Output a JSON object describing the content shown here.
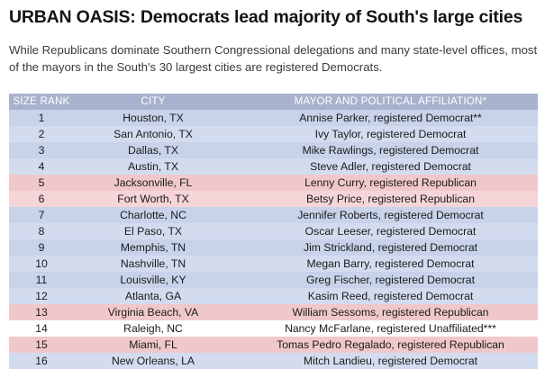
{
  "title": "URBAN OASIS: Democrats lead majority of South's large cities",
  "subtitle": "While Republicans dominate Southern Congressional delegations and many state-level offices, most of the mayors in the South's 30 largest cities are registered Democrats.",
  "table": {
    "headers": [
      "SIZE RANK",
      "CITY",
      "MAYOR AND POLITICAL AFFILIATION*"
    ],
    "rows": [
      {
        "rank": "1",
        "city": "Houston, TX",
        "mayor": "Annise Parker, registered Democrat**",
        "party": "dem"
      },
      {
        "rank": "2",
        "city": "San Antonio, TX",
        "mayor": "Ivy Taylor, registered Democrat",
        "party": "dem"
      },
      {
        "rank": "3",
        "city": "Dallas, TX",
        "mayor": "Mike Rawlings, registered Democrat",
        "party": "dem"
      },
      {
        "rank": "4",
        "city": "Austin, TX",
        "mayor": "Steve Adler, registered Democrat",
        "party": "dem"
      },
      {
        "rank": "5",
        "city": "Jacksonville, FL",
        "mayor": "Lenny Curry, registered Republican",
        "party": "rep"
      },
      {
        "rank": "6",
        "city": "Fort Worth, TX",
        "mayor": "Betsy Price, registered Republican",
        "party": "rep"
      },
      {
        "rank": "7",
        "city": "Charlotte, NC",
        "mayor": "Jennifer Roberts, registered Democrat",
        "party": "dem"
      },
      {
        "rank": "8",
        "city": "El Paso, TX",
        "mayor": "Oscar Leeser, registered Democrat",
        "party": "dem"
      },
      {
        "rank": "9",
        "city": "Memphis, TN",
        "mayor": "Jim Strickland, registered Democrat",
        "party": "dem"
      },
      {
        "rank": "10",
        "city": "Nashville, TN",
        "mayor": "Megan Barry, registered Democrat",
        "party": "dem"
      },
      {
        "rank": "11",
        "city": "Louisville, KY",
        "mayor": "Greg Fischer, registered Democrat",
        "party": "dem"
      },
      {
        "rank": "12",
        "city": "Atlanta, GA",
        "mayor": "Kasim Reed, registered Democrat",
        "party": "dem"
      },
      {
        "rank": "13",
        "city": "Virginia Beach, VA",
        "mayor": "William Sessoms, registered Republican",
        "party": "rep"
      },
      {
        "rank": "14",
        "city": "Raleigh, NC",
        "mayor": "Nancy McFarlane, registered Unaffiliated***",
        "party": "ind"
      },
      {
        "rank": "15",
        "city": "Miami, FL",
        "mayor": "Tomas Pedro Regalado, registered Republican",
        "party": "rep"
      },
      {
        "rank": "16",
        "city": "New Orleans, LA",
        "mayor": "Mitch Landieu, registered Democrat",
        "party": "dem"
      }
    ]
  },
  "colors": {
    "header": "#a8b2cc",
    "democrat": "#c8d3ea",
    "republican": "#f0c8cb",
    "unaffiliated": "#ffffff"
  }
}
